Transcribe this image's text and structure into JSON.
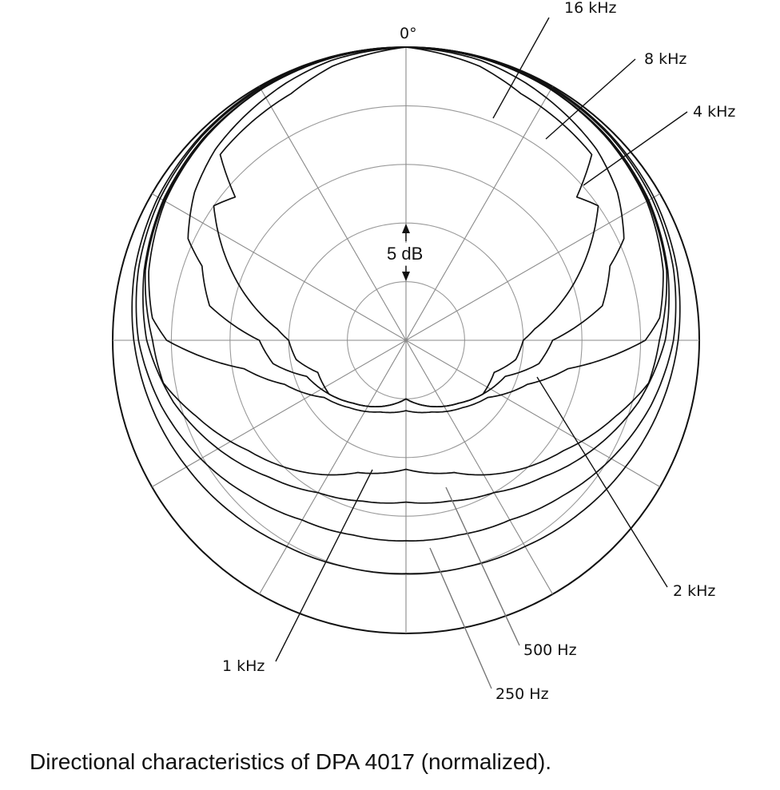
{
  "chart_data": {
    "type": "polar",
    "caption": "Directional characteristics of DPA 4017 (normalized).",
    "angle_label": "0°",
    "scale_label": "5 dB",
    "ring_step_db": 5,
    "rings": 5,
    "spoke_step_deg": 30,
    "grid": true,
    "series": [
      {
        "name": "16 kHz",
        "label_pos": "top-right",
        "angles": [
          0,
          15,
          25,
          35,
          45,
          50,
          55,
          65,
          75,
          85,
          90,
          100,
          110,
          125,
          140,
          160,
          180
        ],
        "values_db": [
          0,
          -0.8,
          -1.8,
          -2.2,
          -2.6,
          -6.0,
          -5.0,
          -8.0,
          -11.0,
          -14.0,
          -15.0,
          -15.5,
          -17.0,
          -17.0,
          -18.0,
          -19.0,
          -20.0
        ]
      },
      {
        "name": "8 kHz",
        "label_pos": "top-right",
        "angles": [
          0,
          15,
          25,
          35,
          45,
          55,
          65,
          70,
          80,
          90,
          100,
          110,
          125,
          140,
          160,
          180
        ],
        "values_db": [
          0,
          -0.3,
          -0.8,
          -1.4,
          -2.0,
          -3.0,
          -4.5,
          -6.5,
          -8.0,
          -12.5,
          -13.5,
          -16.0,
          -17.0,
          -18.0,
          -19.0,
          -20.0
        ]
      },
      {
        "name": "4 kHz",
        "label_pos": "top-right",
        "angles": [
          0,
          15,
          30,
          45,
          60,
          75,
          85,
          90,
          100,
          110,
          125,
          140,
          160,
          180
        ],
        "values_db": [
          0,
          -0.1,
          -0.3,
          -0.7,
          -1.3,
          -2.3,
          -3.3,
          -4.6,
          -11.0,
          -14.0,
          -16.5,
          -17.5,
          -18.5,
          -19.0
        ]
      },
      {
        "name": "2 kHz",
        "label_pos": "bottom-right",
        "angles": [
          0,
          15,
          30,
          45,
          60,
          75,
          90,
          100,
          110,
          125,
          140,
          160,
          180
        ],
        "values_db": [
          0,
          -0.1,
          -0.3,
          -0.7,
          -1.2,
          -2.0,
          -3.4,
          -4.0,
          -6.0,
          -8.6,
          -10.5,
          -13.0,
          -14.0
        ]
      },
      {
        "name": "1 kHz",
        "label_pos": "bottom-left",
        "angles": [
          0,
          15,
          30,
          45,
          60,
          75,
          90,
          105,
          120,
          135,
          150,
          165,
          180
        ],
        "values_db": [
          0,
          -0.1,
          -0.3,
          -0.6,
          -1.1,
          -1.9,
          -2.9,
          -4.5,
          -6.5,
          -8.5,
          -10.0,
          -10.8,
          -11.2
        ]
      },
      {
        "name": "500 Hz",
        "label_pos": "bottom-right",
        "angles": [
          0,
          15,
          30,
          45,
          60,
          75,
          90,
          105,
          120,
          135,
          150,
          165,
          180
        ],
        "values_db": [
          0,
          0,
          -0.2,
          -0.4,
          -0.8,
          -1.4,
          -2.2,
          -3.4,
          -4.8,
          -6.2,
          -7.3,
          -7.8,
          -7.9
        ]
      },
      {
        "name": "250 Hz",
        "label_pos": "bottom-right",
        "angles": [
          0,
          15,
          30,
          45,
          60,
          75,
          90,
          105,
          120,
          135,
          150,
          165,
          180
        ],
        "values_db": [
          0,
          0,
          -0.1,
          -0.3,
          -0.6,
          -1.1,
          -1.8,
          -2.6,
          -3.4,
          -4.1,
          -4.7,
          -5.0,
          -5.1
        ]
      }
    ]
  }
}
